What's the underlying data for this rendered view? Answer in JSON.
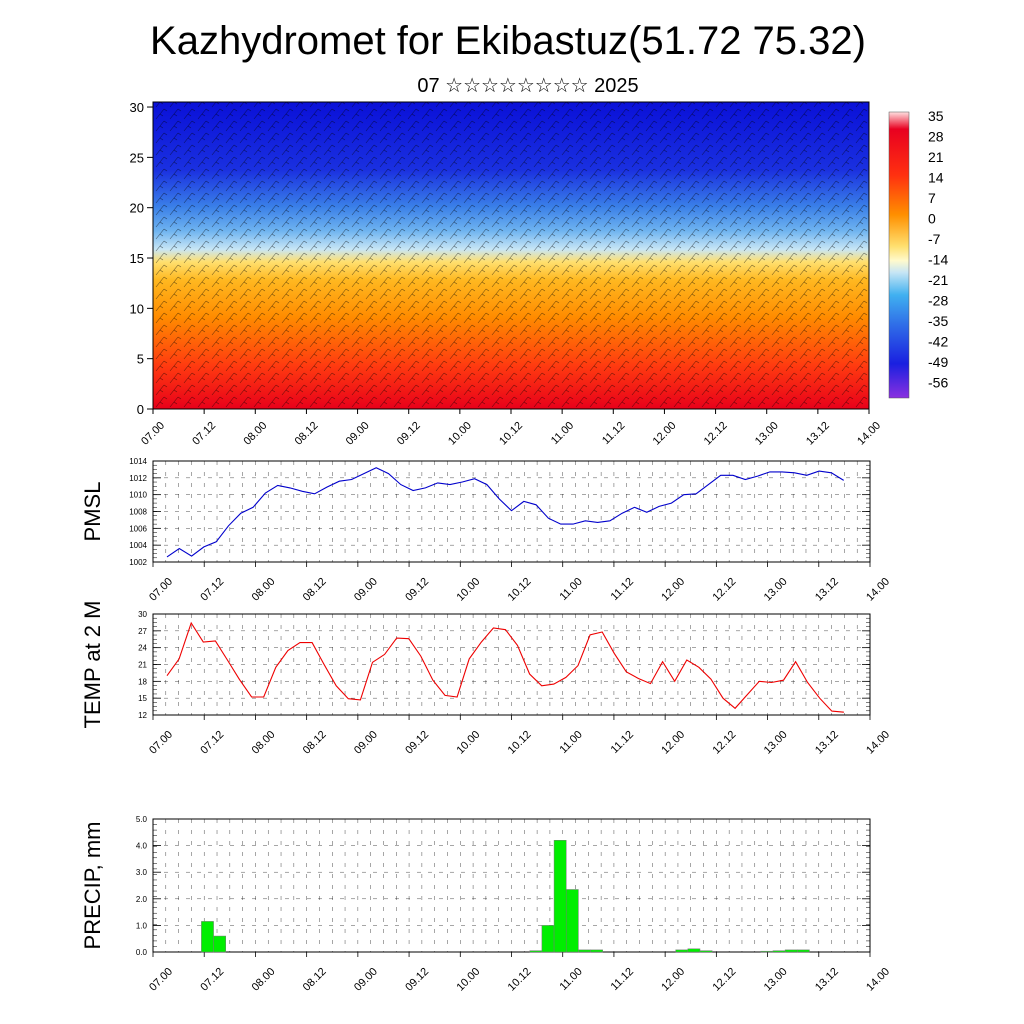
{
  "title": "Kazhydromet for Ekibastuz(51.72 75.32)",
  "subtitle": "07 ☆☆☆☆☆☆☆☆ 2025",
  "chart_data": [
    {
      "type": "heatmap",
      "x_tick_labels": [
        "07.00",
        "07.12",
        "08.00",
        "08.12",
        "09.00",
        "09.12",
        "10.00",
        "10.12",
        "11.00",
        "11.12",
        "12.00",
        "12.12",
        "13.00",
        "13.12",
        "14.00"
      ],
      "y_ticks": [
        0,
        5,
        10,
        15,
        20,
        25,
        30
      ],
      "ylim": [
        0,
        30.5
      ],
      "colorbar_labels": [
        "35",
        "28",
        "21",
        "14",
        "7",
        "0",
        "-7",
        "-14",
        "-21",
        "-28",
        "-35",
        "-42",
        "-49",
        "-56"
      ],
      "overlay": "wind barbs",
      "colors": {
        "hot": "#e8001a",
        "warm": "#ff8c00",
        "mild": "#ffd700",
        "cool": "#a8d8f0",
        "cold": "#3a7fe8",
        "frigid": "#0000d0"
      }
    },
    {
      "type": "line",
      "ylabel": "PMSL",
      "color": "#0000cc",
      "ylim": [
        1002,
        1014
      ],
      "y_ticks": [
        1002,
        1004,
        1006,
        1008,
        1010,
        1012,
        1014
      ],
      "x_tick_labels": [
        "07.00",
        "07.12",
        "08.00",
        "08.12",
        "09.00",
        "09.12",
        "10.00",
        "10.12",
        "11.00",
        "11.12",
        "12.00",
        "12.12",
        "13.00",
        "13.12",
        "14.00"
      ],
      "x": [
        0,
        1,
        2,
        3,
        4,
        5,
        6,
        7,
        8,
        9,
        10,
        11,
        12,
        13,
        14,
        15,
        16,
        17,
        18,
        19,
        20,
        21,
        22,
        23,
        24,
        25,
        26,
        27,
        28,
        29,
        30,
        31,
        32,
        33,
        34,
        35,
        36,
        37,
        38,
        39,
        40,
        41,
        42,
        43,
        44,
        45,
        46,
        47,
        48,
        49,
        50,
        51,
        52,
        53,
        54,
        55
      ],
      "y": [
        1002.6,
        1003.6,
        1002.7,
        1003.8,
        1004.4,
        1006.3,
        1007.8,
        1008.5,
        1010.2,
        1011.1,
        1010.8,
        1010.4,
        1010.1,
        1010.9,
        1011.6,
        1011.8,
        1012.5,
        1013.2,
        1012.5,
        1011.2,
        1010.5,
        1010.8,
        1011.4,
        1011.2,
        1011.5,
        1011.9,
        1011.2,
        1009.5,
        1008.1,
        1009.2,
        1008.8,
        1007.2,
        1006.5,
        1006.5,
        1006.9,
        1006.7,
        1006.9,
        1007.8,
        1008.5,
        1007.9,
        1008.6,
        1009.0,
        1010.0,
        1010.1,
        1011.2,
        1012.3,
        1012.3,
        1011.8,
        1012.2,
        1012.7,
        1012.7,
        1012.6,
        1012.3,
        1012.8,
        1012.6,
        1011.7
      ]
    },
    {
      "type": "line",
      "ylabel": "TEMP at 2 M",
      "color": "#ee0000",
      "ylim": [
        12,
        30
      ],
      "y_ticks": [
        12,
        15,
        18,
        21,
        24,
        27,
        30
      ],
      "x_tick_labels": [
        "07.00",
        "07.12",
        "08.00",
        "08.12",
        "09.00",
        "09.12",
        "10.00",
        "10.12",
        "11.00",
        "11.12",
        "12.00",
        "12.12",
        "13.00",
        "13.12",
        "14.00"
      ],
      "x": [
        0,
        1,
        2,
        3,
        4,
        5,
        6,
        7,
        8,
        9,
        10,
        11,
        12,
        13,
        14,
        15,
        16,
        17,
        18,
        19,
        20,
        21,
        22,
        23,
        24,
        25,
        26,
        27,
        28,
        29,
        30,
        31,
        32,
        33,
        34,
        35,
        36,
        37,
        38,
        39,
        40,
        41,
        42,
        43,
        44,
        45,
        46,
        47,
        48,
        49,
        50,
        51,
        52,
        53,
        54,
        55,
        56
      ],
      "y": [
        19.0,
        22.0,
        28.4,
        25.0,
        25.2,
        21.8,
        18.3,
        15.2,
        15.2,
        20.5,
        23.5,
        24.9,
        24.9,
        21.0,
        17.2,
        14.9,
        14.7,
        21.4,
        22.8,
        25.7,
        25.6,
        22.5,
        18.2,
        15.5,
        15.2,
        22.0,
        25.0,
        27.5,
        27.2,
        24.4,
        19.3,
        17.2,
        17.5,
        18.7,
        20.8,
        26.3,
        26.8,
        23.0,
        19.7,
        18.5,
        17.6,
        21.5,
        18.0,
        21.8,
        20.5,
        18.4,
        15.0,
        13.2,
        15.6,
        18.0,
        17.8,
        18.2,
        21.5,
        17.8,
        15.0,
        12.7,
        12.5
      ]
    },
    {
      "type": "bar",
      "ylabel": "PRECIP, mm",
      "color": "#00ee00",
      "ylim": [
        0,
        5
      ],
      "y_ticks": [
        "0.0",
        "1.0",
        "2.0",
        "3.0",
        "4.0",
        "5.0"
      ],
      "x_tick_labels": [
        "07.00",
        "07.12",
        "08.00",
        "08.12",
        "09.00",
        "09.12",
        "10.00",
        "10.12",
        "11.00",
        "11.12",
        "12.00",
        "12.12",
        "13.00",
        "13.12",
        "14.00"
      ],
      "x": [
        0,
        1,
        2,
        3,
        4,
        5,
        6,
        7,
        8,
        9,
        10,
        11,
        12,
        13,
        14,
        15,
        16,
        17,
        18,
        19,
        20,
        21,
        22,
        23,
        24,
        25,
        26,
        27,
        28,
        29,
        30,
        31,
        32,
        33,
        34,
        35,
        36,
        37,
        38,
        39,
        40,
        41,
        42,
        43,
        44,
        45,
        46,
        47,
        48,
        49,
        50,
        51,
        52,
        53,
        54,
        55
      ],
      "values": [
        0,
        0,
        0,
        1.15,
        0.6,
        0,
        0,
        0,
        0,
        0,
        0,
        0,
        0,
        0,
        0,
        0,
        0,
        0,
        0,
        0,
        0,
        0,
        0,
        0,
        0,
        0,
        0,
        0,
        0,
        0,
        0.05,
        1.0,
        4.2,
        2.35,
        0.08,
        0.08,
        0,
        0,
        0,
        0,
        0,
        0,
        0.08,
        0.12,
        0.05,
        0,
        0,
        0,
        0,
        0.03,
        0.05,
        0.08,
        0.08,
        0,
        0,
        0
      ]
    }
  ]
}
